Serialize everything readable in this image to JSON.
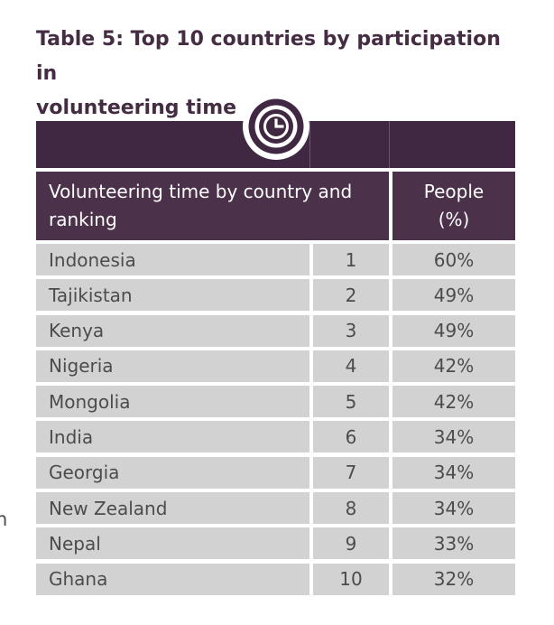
{
  "page": {
    "title_line1": "Table 5: Top 10 countries by participation in",
    "title_line2": "volunteering time",
    "title_full": "Table 5: Top 10 countries by participation in volunteering time",
    "edge_text_fragment": "n"
  },
  "colors": {
    "band_purple": "#402742",
    "header_purple": "#4b3149",
    "title_purple": "#442c43",
    "row_gray": "#d2d2d2",
    "row_text_gray": "#4c4c4c",
    "white": "#ffffff"
  },
  "table": {
    "icon": "clock-icon",
    "header": {
      "main": "Volunteering time by country and ranking",
      "people_line1": "People",
      "people_line2": "(%)"
    },
    "rows": [
      {
        "country": "Indonesia",
        "rank": "1",
        "percent": "60%"
      },
      {
        "country": "Tajikistan",
        "rank": "2",
        "percent": "49%"
      },
      {
        "country": "Kenya",
        "rank": "3",
        "percent": "49%"
      },
      {
        "country": "Nigeria",
        "rank": "4",
        "percent": "42%"
      },
      {
        "country": "Mongolia",
        "rank": "5",
        "percent": "42%"
      },
      {
        "country": "India",
        "rank": "6",
        "percent": "34%"
      },
      {
        "country": "Georgia",
        "rank": "7",
        "percent": "34%"
      },
      {
        "country": "New Zealand",
        "rank": "8",
        "percent": "34%"
      },
      {
        "country": "Nepal",
        "rank": "9",
        "percent": "33%"
      },
      {
        "country": "Ghana",
        "rank": "10",
        "percent": "32%"
      }
    ]
  },
  "chart_data": {
    "type": "table",
    "title": "Table 5: Top 10 countries by participation in volunteering time",
    "columns": [
      "Volunteering time by country and ranking",
      "Ranking",
      "People (%)"
    ],
    "rows": [
      [
        "Indonesia",
        1,
        "60%"
      ],
      [
        "Tajikistan",
        2,
        "49%"
      ],
      [
        "Kenya",
        3,
        "49%"
      ],
      [
        "Nigeria",
        4,
        "42%"
      ],
      [
        "Mongolia",
        5,
        "42%"
      ],
      [
        "India",
        6,
        "34%"
      ],
      [
        "Georgia",
        7,
        "34%"
      ],
      [
        "New Zealand",
        8,
        "34%"
      ],
      [
        "Nepal",
        9,
        "33%"
      ],
      [
        "Ghana",
        10,
        "32%"
      ]
    ]
  }
}
